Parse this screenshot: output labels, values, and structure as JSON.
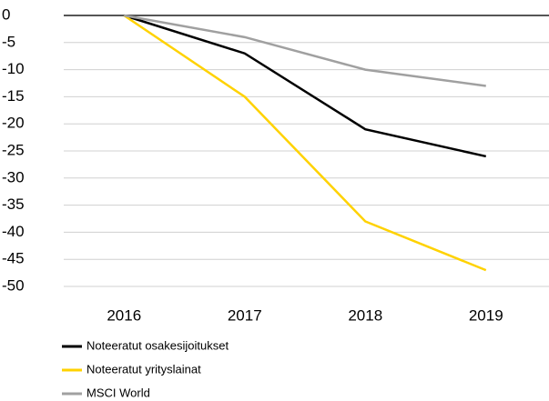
{
  "chart_data": {
    "type": "line",
    "categories": [
      "2016",
      "2017",
      "2018",
      "2019"
    ],
    "series": [
      {
        "name": "Noteeratut osakesijoitukset",
        "color": "#000000",
        "values": [
          0,
          -7,
          -21,
          -26
        ]
      },
      {
        "name": "Noteeratut yrityslainat",
        "color": "#ffd200",
        "values": [
          0,
          -15,
          -38,
          -47
        ]
      },
      {
        "name": "MSCI World",
        "color": "#a0a0a0",
        "values": [
          0,
          -4,
          -10,
          -13
        ]
      }
    ],
    "ylim": [
      -50,
      0
    ],
    "yticks": [
      0,
      -5,
      -10,
      -15,
      -20,
      -25,
      -30,
      -35,
      -40,
      -45,
      -50
    ],
    "grid": true,
    "legend": "bottom"
  }
}
